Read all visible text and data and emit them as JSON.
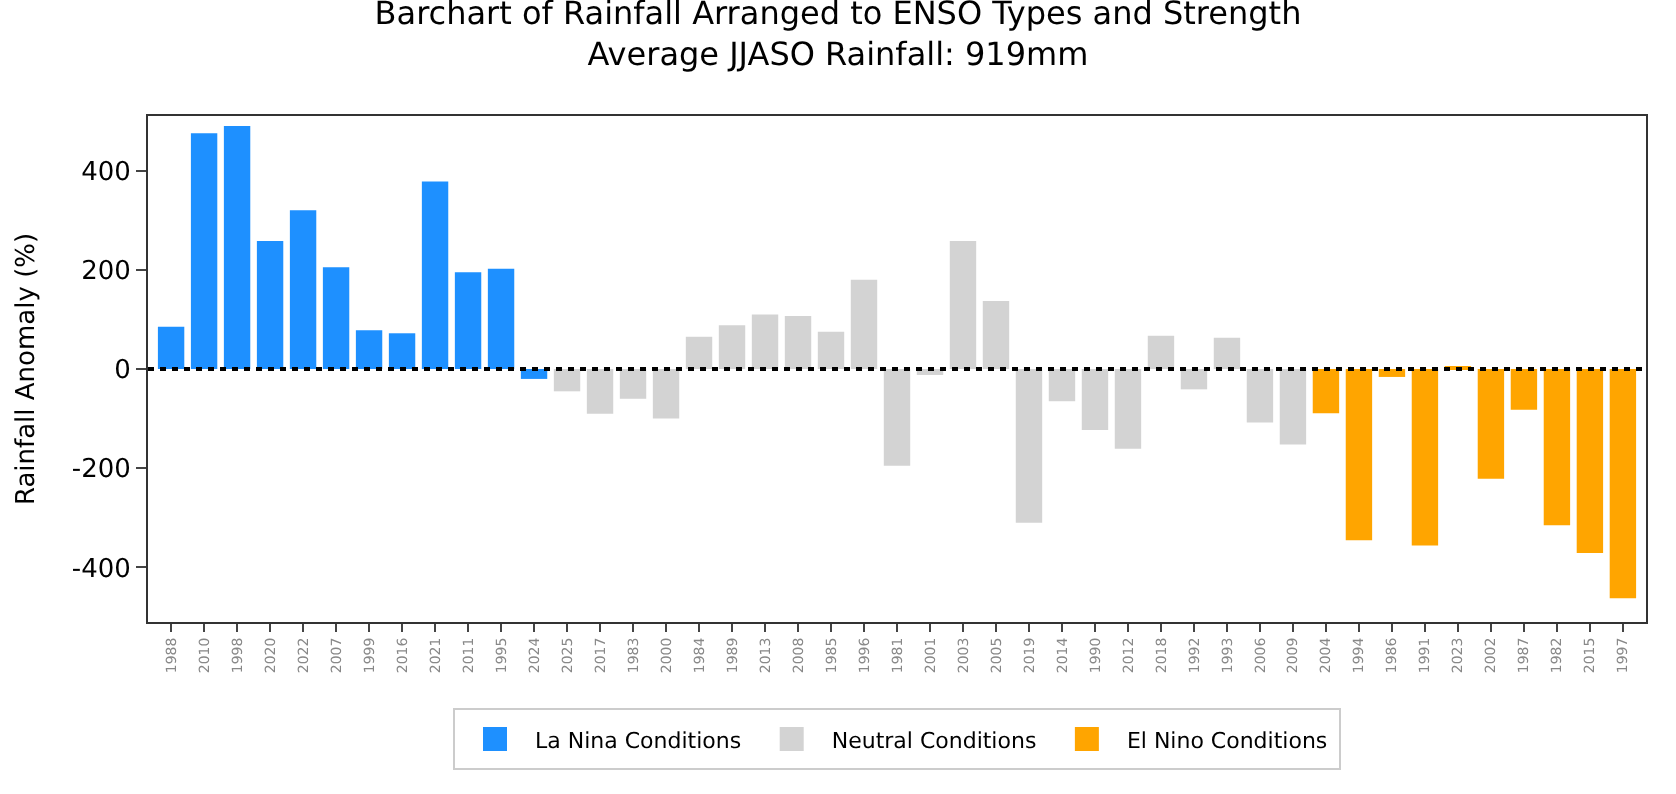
{
  "chart_data": {
    "type": "bar",
    "title": "Barchart of Rainfall Arranged to ENSO Types and Strength",
    "subtitle": "Average JJASO Rainfall: 919mm",
    "ylabel": "Rainfall Anomaly (%)",
    "categories": [
      "1988",
      "2010",
      "1998",
      "2020",
      "2022",
      "2007",
      "1999",
      "2016",
      "2021",
      "2011",
      "1995",
      "2024",
      "2025",
      "2017",
      "1983",
      "2000",
      "1984",
      "1989",
      "2013",
      "2008",
      "1985",
      "1996",
      "1981",
      "2001",
      "2003",
      "2005",
      "2019",
      "2014",
      "1990",
      "2012",
      "2018",
      "1992",
      "1993",
      "2006",
      "2009",
      "2004",
      "1994",
      "1986",
      "1991",
      "2023",
      "2002",
      "1987",
      "1982",
      "2015",
      "1997"
    ],
    "series": [
      {
        "name": "La Nina Conditions",
        "color": "#1e90ff",
        "values": [
          85,
          475,
          490,
          258,
          320,
          205,
          78,
          72,
          378,
          195,
          202,
          -20,
          null,
          null,
          null,
          null,
          null,
          null,
          null,
          null,
          null,
          null,
          null,
          null,
          null,
          null,
          null,
          null,
          null,
          null,
          null,
          null,
          null,
          null,
          null,
          null,
          null,
          null,
          null,
          null,
          null,
          null,
          null,
          null,
          null
        ]
      },
      {
        "name": "Neutral Conditions",
        "color": "#d3d3d3",
        "values": [
          null,
          null,
          null,
          null,
          null,
          null,
          null,
          null,
          null,
          null,
          null,
          null,
          -45,
          -90,
          -60,
          -100,
          65,
          88,
          110,
          107,
          75,
          180,
          -195,
          -12,
          258,
          137,
          -310,
          -65,
          -123,
          -161,
          67,
          -41,
          63,
          -108,
          -152,
          null,
          null,
          null,
          null,
          null,
          null,
          null,
          null,
          null,
          null
        ]
      },
      {
        "name": "El Nino Conditions",
        "color": "#ffa500",
        "values": [
          null,
          null,
          null,
          null,
          null,
          null,
          null,
          null,
          null,
          null,
          null,
          null,
          null,
          null,
          null,
          null,
          null,
          null,
          null,
          null,
          null,
          null,
          null,
          null,
          null,
          null,
          null,
          null,
          null,
          null,
          null,
          null,
          null,
          null,
          null,
          -89,
          -345,
          -16,
          -356,
          5,
          -221,
          -82,
          -315,
          -371,
          -462
        ]
      }
    ],
    "ylim": [
      -510,
      510
    ],
    "yticks": [
      -400,
      -200,
      0,
      200,
      400
    ],
    "ref_lines": [
      {
        "axis": "y",
        "value": 0,
        "color": "#000000",
        "line_style": "dotted"
      }
    ],
    "legend": "bottom"
  }
}
